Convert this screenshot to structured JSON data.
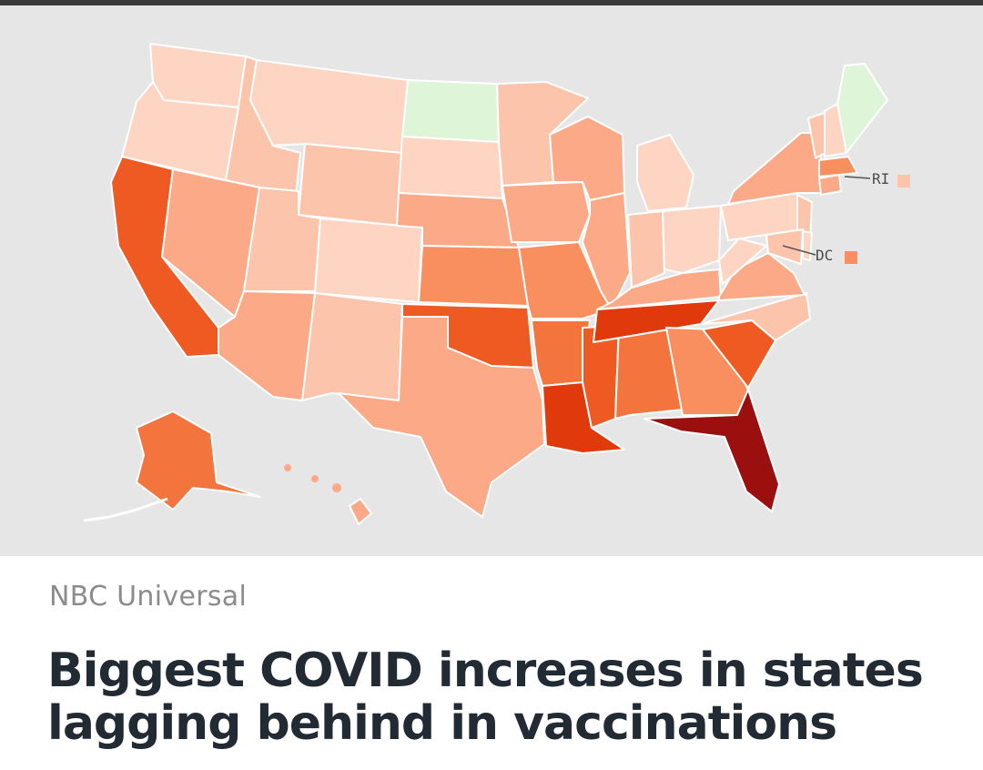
{
  "article": {
    "source": "NBC Universal",
    "headline": "Biggest COVID increases in states lagging behind in vaccinations"
  },
  "map": {
    "labels": {
      "ri": "RI",
      "dc": "DC"
    },
    "colors": {
      "green": "#dff5d8",
      "level1": "#fdd5c2",
      "level2": "#fcc4aa",
      "level3": "#fba986",
      "level4": "#f98f5f",
      "level5": "#f4743e",
      "level6": "#ef5a22",
      "level7": "#e03a0c",
      "level8": "#9c0f0f"
    }
  }
}
